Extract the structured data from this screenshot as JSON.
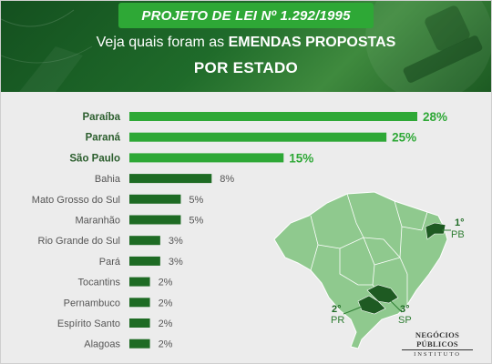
{
  "header": {
    "title": "PROJETO DE LEI Nº 1.292/1995",
    "subtitle_prefix": "Veja quais foram as ",
    "subtitle_bold": "EMENDAS PROPOSTAS",
    "subtitle_line2": "POR ESTADO"
  },
  "colors": {
    "header_bg": "#1f6b2a",
    "accent": "#2ea836",
    "bar_top": "#2ea836",
    "bar_other": "#1e6b24",
    "map_land": "#8fc98e",
    "map_highlight": "#1e5a22",
    "background": "#ececec"
  },
  "chart_data": {
    "type": "bar",
    "orientation": "horizontal",
    "title": "EMENDAS PROPOSTAS POR ESTADO",
    "categories": [
      "Paraíba",
      "Paraná",
      "São Paulo",
      "Bahia",
      "Mato Grosso do Sul",
      "Maranhão",
      "Rio Grande do Sul",
      "Pará",
      "Tocantins",
      "Pernambuco",
      "Espírito Santo",
      "Alagoas"
    ],
    "values": [
      28,
      25,
      15,
      8,
      5,
      5,
      3,
      3,
      2,
      2,
      2,
      2
    ],
    "value_labels": [
      "28%",
      "25%",
      "15%",
      "8%",
      "5%",
      "5%",
      "3%",
      "3%",
      "2%",
      "2%",
      "2%",
      "2%"
    ],
    "unit": "%",
    "highlighted_top": 3,
    "xlim": [
      0,
      28
    ],
    "grid": false,
    "legend": "none"
  },
  "map": {
    "ranks": [
      {
        "rank": "1°",
        "state": "PB"
      },
      {
        "rank": "2°",
        "state": "PR"
      },
      {
        "rank": "3°",
        "state": "SP"
      }
    ]
  },
  "logo": {
    "name": "NEGÓCIOS PÚBLICOS",
    "sub": "INSTITUTO"
  }
}
